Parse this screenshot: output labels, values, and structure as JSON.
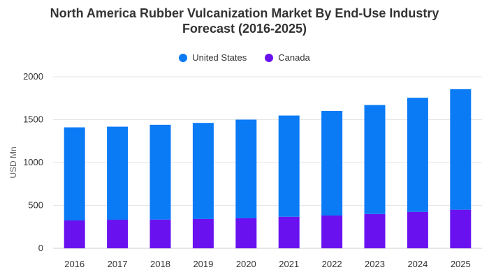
{
  "chart_data": {
    "type": "bar",
    "stacked": true,
    "title_line1": "North America Rubber Vulcanization Market By End-Use Industry",
    "title_line2": "Forecast (2016-2025)",
    "ylabel": "USD Mn",
    "xlabel": "",
    "ylim": [
      0,
      2000
    ],
    "yticks": [
      "0",
      "500",
      "1000",
      "1500",
      "2000"
    ],
    "grid": true,
    "legend_position": "top-center",
    "categories": [
      "2016",
      "2017",
      "2018",
      "2019",
      "2020",
      "2021",
      "2022",
      "2023",
      "2024",
      "2025"
    ],
    "series": [
      {
        "name": "United States",
        "color": "#0a7bf5",
        "values": [
          1085,
          1085,
          1105,
          1120,
          1150,
          1180,
          1220,
          1270,
          1330,
          1405
        ]
      },
      {
        "name": "Canada",
        "color": "#6a11f0",
        "values": [
          325,
          333,
          335,
          342,
          350,
          368,
          382,
          400,
          425,
          450
        ]
      }
    ]
  }
}
